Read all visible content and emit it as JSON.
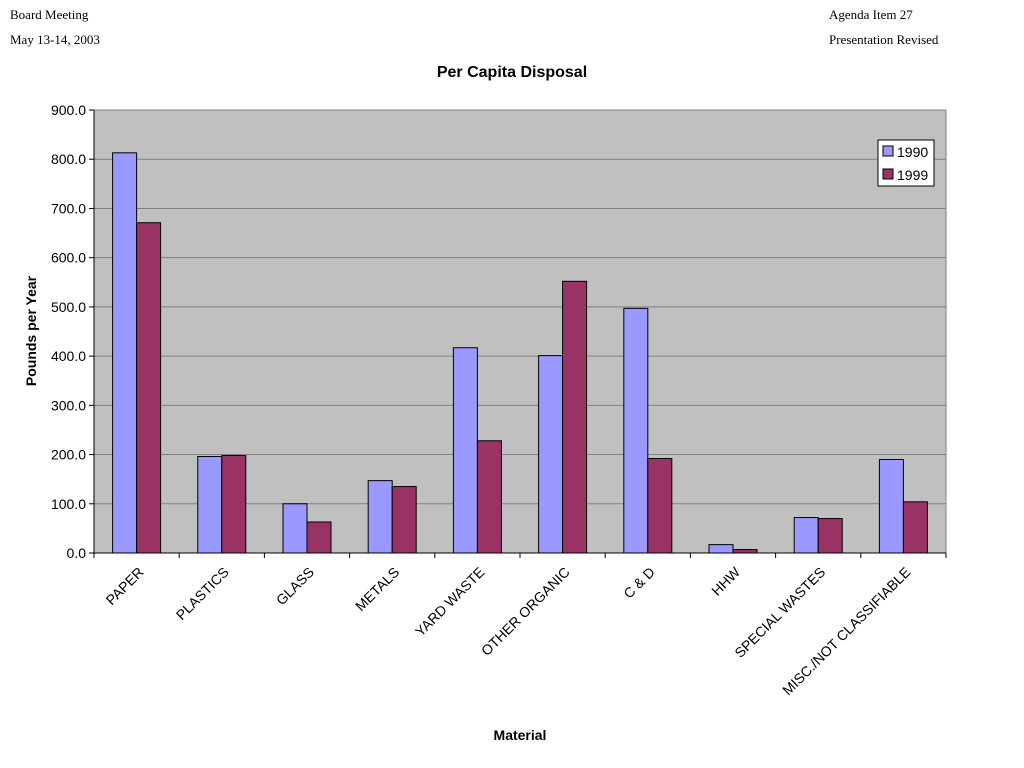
{
  "header": {
    "top_left_line1": "Board Meeting",
    "top_left_line2": "May 13-14, 2003",
    "top_right_line1": "Agenda Item 27",
    "top_right_line2": "Presentation Revised"
  },
  "chart_data": {
    "type": "bar",
    "title": "Per Capita Disposal",
    "xlabel": "Material",
    "ylabel": "Pounds per Year",
    "ylim": [
      0,
      900
    ],
    "yticks": [
      "0.0",
      "100.0",
      "200.0",
      "300.0",
      "400.0",
      "500.0",
      "600.0",
      "700.0",
      "800.0",
      "900.0"
    ],
    "grid": true,
    "legend_position": "top-right",
    "categories": [
      "PAPER",
      "PLASTICS",
      "GLASS",
      "METALS",
      "YARD WASTE",
      "OTHER ORGANIC",
      "C & D",
      "HHW",
      "SPECIAL WASTES",
      "MISC./NOT CLASSIFIABLE"
    ],
    "series": [
      {
        "name": "1990",
        "color": "#9999ff",
        "values": [
          813,
          196,
          100,
          147,
          417,
          401,
          497,
          17,
          72,
          190
        ]
      },
      {
        "name": "1999",
        "color": "#993366",
        "values": [
          671,
          198,
          63,
          135,
          228,
          552,
          192,
          7,
          70,
          104
        ]
      }
    ],
    "plot_background": "#c0c0c0"
  }
}
